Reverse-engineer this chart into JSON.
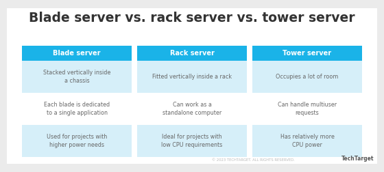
{
  "title": "Blade server vs. rack server vs. tower server",
  "title_fontsize": 13.5,
  "title_fontweight": "bold",
  "outer_bg": "#ebebeb",
  "card_bg": "#ffffff",
  "header_color": "#1ab3e8",
  "header_text_color": "#ffffff",
  "row_alt_color": "#d6eff9",
  "row_white_color": "#ffffff",
  "text_color": "#666666",
  "title_color": "#333333",
  "border_color": "#1ab3e8",
  "columns": [
    {
      "header": "Blade server",
      "rows": [
        "Stacked vertically inside\na chassis",
        "Each blade is dedicated\nto a single application",
        "Used for projects with\nhigher power needs"
      ]
    },
    {
      "header": "Rack server",
      "rows": [
        "Fitted vertically inside a rack",
        "Can work as a\nstandalone computer",
        "Ideal for projects with\nlow CPU requirements"
      ]
    },
    {
      "header": "Tower server",
      "rows": [
        "Occupies a lot of room",
        "Can handle multiuser\nrequests",
        "Has relatively more\nCPU power"
      ]
    }
  ],
  "footer_text": "© 2023 TECHTARGET. ALL RIGHTS RESERVED.",
  "footer_brand": "TechTarget"
}
